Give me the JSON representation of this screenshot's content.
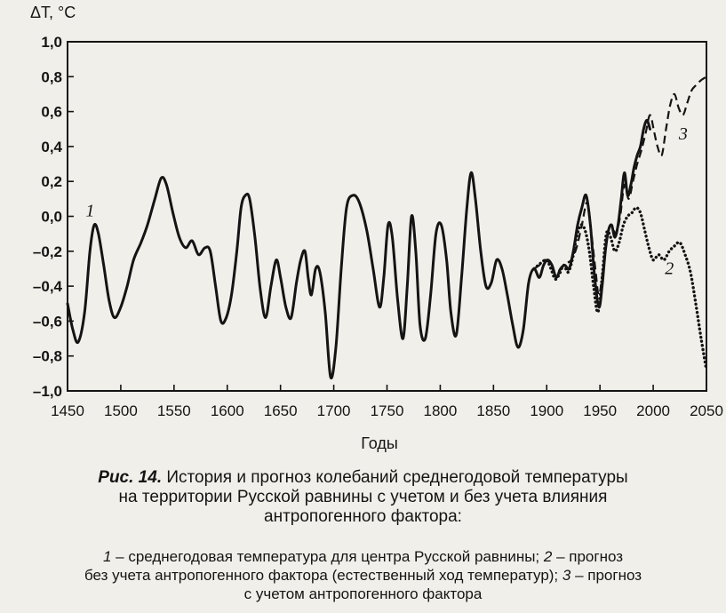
{
  "chart_data": {
    "type": "line",
    "ylabel": "ΔT, °C",
    "xlabel": "Годы",
    "xlim": [
      1450,
      2050
    ],
    "ylim": [
      -1.0,
      1.0
    ],
    "x_ticks": [
      "1450",
      "1500",
      "1550",
      "1600",
      "1650",
      "1700",
      "1750",
      "1800",
      "1850",
      "1900",
      "1950",
      "2000",
      "2050"
    ],
    "y_ticks": [
      "1,0",
      "0,8",
      "0,6",
      "0,4",
      "0,2",
      "0,0",
      "–0,2",
      "–0,4",
      "–0,6",
      "–0,8",
      "–1,0"
    ],
    "y_tick_values": [
      1.0,
      0.8,
      0.6,
      0.4,
      0.2,
      0.0,
      -0.2,
      -0.4,
      -0.6,
      -0.8,
      -1.0
    ],
    "grid": false,
    "series": [
      {
        "name": "1",
        "style": "solid",
        "points": [
          [
            1450,
            -0.5
          ],
          [
            1455,
            -0.65
          ],
          [
            1460,
            -0.72
          ],
          [
            1466,
            -0.55
          ],
          [
            1471,
            -0.2
          ],
          [
            1475,
            -0.05
          ],
          [
            1479,
            -0.1
          ],
          [
            1484,
            -0.28
          ],
          [
            1489,
            -0.48
          ],
          [
            1494,
            -0.58
          ],
          [
            1500,
            -0.52
          ],
          [
            1506,
            -0.4
          ],
          [
            1512,
            -0.25
          ],
          [
            1519,
            -0.15
          ],
          [
            1525,
            -0.05
          ],
          [
            1532,
            0.1
          ],
          [
            1538,
            0.22
          ],
          [
            1543,
            0.18
          ],
          [
            1549,
            0.02
          ],
          [
            1555,
            -0.12
          ],
          [
            1561,
            -0.18
          ],
          [
            1567,
            -0.14
          ],
          [
            1573,
            -0.22
          ],
          [
            1579,
            -0.18
          ],
          [
            1584,
            -0.2
          ],
          [
            1589,
            -0.4
          ],
          [
            1594,
            -0.6
          ],
          [
            1599,
            -0.58
          ],
          [
            1604,
            -0.45
          ],
          [
            1609,
            -0.2
          ],
          [
            1613,
            0.05
          ],
          [
            1617,
            0.12
          ],
          [
            1621,
            0.1
          ],
          [
            1626,
            -0.12
          ],
          [
            1631,
            -0.42
          ],
          [
            1636,
            -0.58
          ],
          [
            1641,
            -0.4
          ],
          [
            1646,
            -0.25
          ],
          [
            1650,
            -0.35
          ],
          [
            1655,
            -0.52
          ],
          [
            1660,
            -0.58
          ],
          [
            1665,
            -0.38
          ],
          [
            1669,
            -0.25
          ],
          [
            1673,
            -0.2
          ],
          [
            1676,
            -0.35
          ],
          [
            1679,
            -0.45
          ],
          [
            1683,
            -0.3
          ],
          [
            1687,
            -0.32
          ],
          [
            1692,
            -0.55
          ],
          [
            1697,
            -0.92
          ],
          [
            1702,
            -0.75
          ],
          [
            1707,
            -0.3
          ],
          [
            1712,
            0.05
          ],
          [
            1718,
            0.12
          ],
          [
            1724,
            0.08
          ],
          [
            1731,
            -0.08
          ],
          [
            1737,
            -0.3
          ],
          [
            1743,
            -0.52
          ],
          [
            1747,
            -0.35
          ],
          [
            1751,
            -0.05
          ],
          [
            1755,
            -0.12
          ],
          [
            1760,
            -0.48
          ],
          [
            1765,
            -0.7
          ],
          [
            1769,
            -0.4
          ],
          [
            1773,
            0.0
          ],
          [
            1777,
            -0.2
          ],
          [
            1781,
            -0.62
          ],
          [
            1786,
            -0.7
          ],
          [
            1791,
            -0.45
          ],
          [
            1796,
            -0.1
          ],
          [
            1801,
            -0.05
          ],
          [
            1806,
            -0.25
          ],
          [
            1810,
            -0.55
          ],
          [
            1815,
            -0.68
          ],
          [
            1820,
            -0.35
          ],
          [
            1825,
            0.05
          ],
          [
            1829,
            0.25
          ],
          [
            1833,
            0.1
          ],
          [
            1838,
            -0.2
          ],
          [
            1843,
            -0.4
          ],
          [
            1848,
            -0.38
          ],
          [
            1853,
            -0.25
          ],
          [
            1858,
            -0.3
          ],
          [
            1863,
            -0.45
          ],
          [
            1868,
            -0.62
          ],
          [
            1873,
            -0.75
          ],
          [
            1878,
            -0.65
          ],
          [
            1883,
            -0.38
          ],
          [
            1888,
            -0.3
          ],
          [
            1893,
            -0.35
          ],
          [
            1897,
            -0.28
          ],
          [
            1901,
            -0.25
          ],
          [
            1905,
            -0.28
          ],
          [
            1909,
            -0.35
          ],
          [
            1913,
            -0.3
          ],
          [
            1917,
            -0.28
          ],
          [
            1921,
            -0.3
          ],
          [
            1925,
            -0.2
          ],
          [
            1929,
            -0.05
          ],
          [
            1933,
            0.05
          ],
          [
            1937,
            0.12
          ],
          [
            1941,
            -0.05
          ],
          [
            1945,
            -0.35
          ],
          [
            1949,
            -0.52
          ],
          [
            1952,
            -0.4
          ],
          [
            1955,
            -0.2
          ],
          [
            1958,
            -0.08
          ],
          [
            1961,
            -0.05
          ],
          [
            1964,
            -0.12
          ],
          [
            1967,
            -0.05
          ],
          [
            1970,
            0.1
          ],
          [
            1973,
            0.25
          ],
          [
            1976,
            0.12
          ],
          [
            1979,
            0.18
          ],
          [
            1982,
            0.28
          ],
          [
            1985,
            0.35
          ],
          [
            1988,
            0.4
          ],
          [
            1991,
            0.5
          ],
          [
            1994,
            0.55
          ],
          [
            1997,
            0.5
          ]
        ]
      },
      {
        "name": "2",
        "style": "dotted",
        "points": [
          [
            1888,
            -0.3
          ],
          [
            1892,
            -0.28
          ],
          [
            1896,
            -0.26
          ],
          [
            1900,
            -0.25
          ],
          [
            1904,
            -0.3
          ],
          [
            1908,
            -0.36
          ],
          [
            1912,
            -0.33
          ],
          [
            1916,
            -0.28
          ],
          [
            1920,
            -0.32
          ],
          [
            1924,
            -0.25
          ],
          [
            1928,
            -0.12
          ],
          [
            1932,
            -0.05
          ],
          [
            1936,
            -0.08
          ],
          [
            1940,
            -0.2
          ],
          [
            1944,
            -0.4
          ],
          [
            1948,
            -0.55
          ],
          [
            1952,
            -0.35
          ],
          [
            1956,
            -0.1
          ],
          [
            1960,
            -0.12
          ],
          [
            1964,
            -0.2
          ],
          [
            1968,
            -0.15
          ],
          [
            1972,
            -0.05
          ],
          [
            1976,
            0.0
          ],
          [
            1980,
            0.02
          ],
          [
            1984,
            0.05
          ],
          [
            1988,
            0.02
          ],
          [
            1992,
            -0.08
          ],
          [
            1996,
            -0.18
          ],
          [
            2000,
            -0.25
          ],
          [
            2005,
            -0.22
          ],
          [
            2010,
            -0.25
          ],
          [
            2015,
            -0.2
          ],
          [
            2020,
            -0.17
          ],
          [
            2025,
            -0.15
          ],
          [
            2030,
            -0.22
          ],
          [
            2035,
            -0.32
          ],
          [
            2040,
            -0.5
          ],
          [
            2045,
            -0.7
          ],
          [
            2050,
            -0.88
          ]
        ]
      },
      {
        "name": "3",
        "style": "dashed",
        "points": [
          [
            1888,
            -0.3
          ],
          [
            1893,
            -0.28
          ],
          [
            1898,
            -0.25
          ],
          [
            1903,
            -0.27
          ],
          [
            1908,
            -0.33
          ],
          [
            1913,
            -0.3
          ],
          [
            1918,
            -0.27
          ],
          [
            1923,
            -0.25
          ],
          [
            1928,
            -0.18
          ],
          [
            1933,
            -0.05
          ],
          [
            1938,
            0.08
          ],
          [
            1942,
            -0.1
          ],
          [
            1946,
            -0.32
          ],
          [
            1949,
            -0.45
          ],
          [
            1953,
            -0.3
          ],
          [
            1957,
            -0.1
          ],
          [
            1961,
            -0.05
          ],
          [
            1965,
            -0.1
          ],
          [
            1969,
            0.0
          ],
          [
            1973,
            0.18
          ],
          [
            1977,
            0.1
          ],
          [
            1981,
            0.2
          ],
          [
            1985,
            0.3
          ],
          [
            1989,
            0.38
          ],
          [
            1993,
            0.48
          ],
          [
            1997,
            0.58
          ],
          [
            2001,
            0.48
          ],
          [
            2004,
            0.4
          ],
          [
            2008,
            0.35
          ],
          [
            2012,
            0.5
          ],
          [
            2016,
            0.64
          ],
          [
            2020,
            0.7
          ],
          [
            2024,
            0.62
          ],
          [
            2028,
            0.58
          ],
          [
            2032,
            0.65
          ],
          [
            2036,
            0.72
          ],
          [
            2040,
            0.75
          ],
          [
            2045,
            0.78
          ],
          [
            2050,
            0.8
          ]
        ]
      }
    ],
    "annotations": [
      {
        "text": "1",
        "x": 1467,
        "y": 0.0
      },
      {
        "text": "2",
        "x": 2011,
        "y": -0.33
      },
      {
        "text": "3",
        "x": 2024,
        "y": 0.44
      }
    ]
  },
  "caption": {
    "figure": "Рис. 14.",
    "title_line1": "История и прогноз колебаний среднегодовой температуры",
    "title_line2": "на территории Русской равнины с учетом и без учета влияния",
    "title_line3": "антропогенного фактора:",
    "legend_1_num": "1",
    "legend_1_text": " – среднегодовая температура для центра Русской равнины; ",
    "legend_2_num": "2",
    "legend_2_text_a": " – прогноз",
    "legend_2_text_b": "без учета антропогенного фактора (естественный ход температур); ",
    "legend_3_num": "3",
    "legend_3_text_a": " – прогноз",
    "legend_3_text_b": "с учетом антропогенного фактора"
  }
}
